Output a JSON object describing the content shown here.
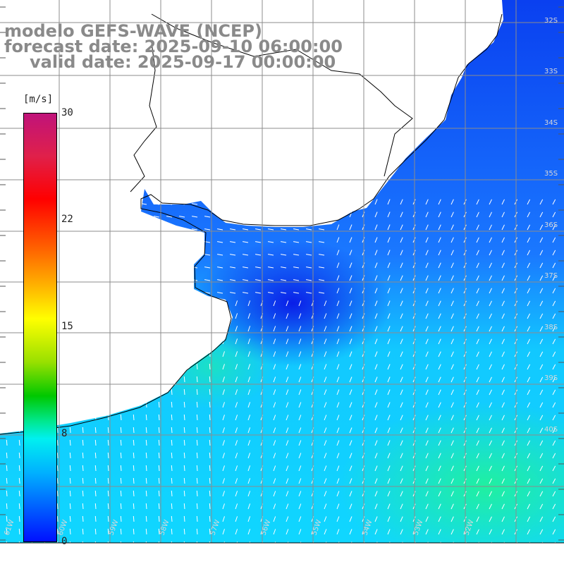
{
  "title": {
    "model": "modelo GEFS-WAVE (NCEP)",
    "forecast": "forecast date: 2025-09-10 06:00:00",
    "valid": "valid date: 2025-09-17 00:00:00"
  },
  "legend": {
    "unit": "[m/s]",
    "ticks": [
      "30",
      "22",
      "15",
      "8",
      "0"
    ],
    "colors": [
      "#c0137a",
      "#ff0000",
      "#ff8800",
      "#ffff00",
      "#00c800",
      "#00f0f0",
      "#0010ff"
    ]
  },
  "map": {
    "ocean_strong_color": "#0a3cf0",
    "ocean_mid_color": "#1e90ff",
    "ocean_cyan_color": "#10d8ff",
    "ocean_green_color": "#20f0a0",
    "land_color": "#ffffff",
    "arrow_color": "#ffffff",
    "gridline_color": "#8c8c8c"
  },
  "chart_data": {
    "type": "heatmap",
    "variable": "wind speed",
    "unit": "[m/s]",
    "colorbar_range": [
      0,
      30
    ],
    "lat_labels_right": [
      "32S",
      "33S",
      "34S",
      "35S",
      "36S",
      "37S",
      "38S",
      "39S",
      "40S"
    ],
    "lon_labels_bottom": [
      "61W",
      "60W",
      "59W",
      "58W",
      "57W",
      "56W",
      "55W",
      "54W",
      "53W",
      "52W"
    ]
  }
}
